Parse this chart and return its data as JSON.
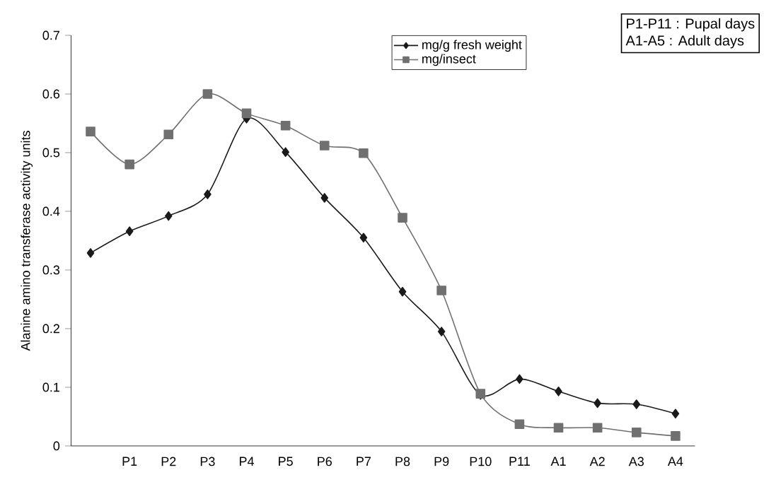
{
  "chart_data": {
    "type": "line",
    "ylabel": "Alanine amino transferase activity units",
    "categories": [
      null,
      "P1",
      "P2",
      "P3",
      "P4",
      "P5",
      "P6",
      "P7",
      "P8",
      "P9",
      "P10",
      "P11",
      "A1",
      "A2",
      "A3",
      "A4"
    ],
    "series": [
      {
        "name": "mg/g fresh weight",
        "color": "#1a1a1a",
        "marker": "diamond",
        "values": [
          0.329,
          0.366,
          0.392,
          0.429,
          0.558,
          0.501,
          0.423,
          0.355,
          0.263,
          0.195,
          0.087,
          0.114,
          0.093,
          0.073,
          0.071,
          0.055
        ]
      },
      {
        "name": "mg/insect",
        "color": "#707070",
        "marker": "square",
        "values": [
          0.536,
          0.48,
          0.531,
          0.6,
          0.567,
          0.546,
          0.512,
          0.499,
          0.389,
          0.265,
          0.089,
          0.037,
          0.031,
          0.031,
          0.023,
          0.017
        ]
      }
    ],
    "ylim": [
      0,
      0.7
    ],
    "yticks": [
      0,
      0.1,
      0.2,
      0.3,
      0.4,
      0.5,
      0.6,
      0.7
    ],
    "grid": false,
    "legend": "top right",
    "line_style": "solid",
    "annotations": [
      "P1-P11 : Pupal days",
      "A1-A5 : Adult days"
    ]
  }
}
